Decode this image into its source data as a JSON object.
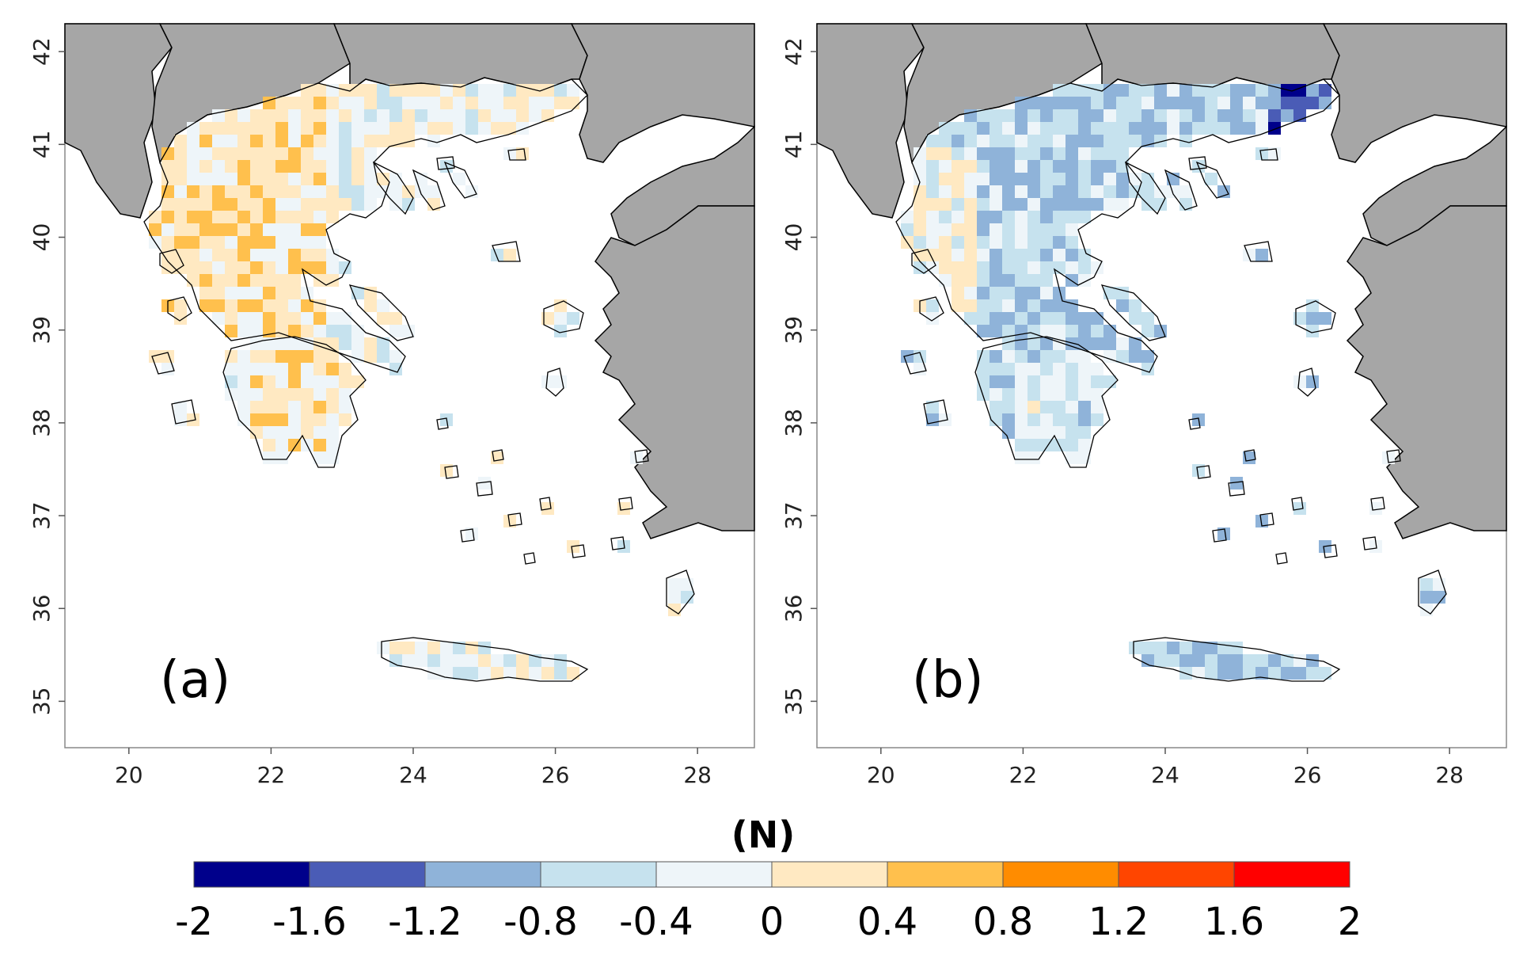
{
  "figure": {
    "panels": [
      {
        "id": "a",
        "label": "(a)",
        "lon_range": [
          19.1,
          28.8
        ],
        "lat_range": [
          34.5,
          42.3
        ],
        "x_ticks": [
          "20",
          "22",
          "24",
          "26",
          "28"
        ],
        "y_ticks": [
          "35",
          "36",
          "37",
          "38",
          "39",
          "40",
          "41",
          "42"
        ],
        "dominant_anomaly": "mixed, near zero with orange (positive) cells in western mainland and Peloponnese"
      },
      {
        "id": "b",
        "label": "(b)",
        "lon_range": [
          19.1,
          28.8
        ],
        "lat_range": [
          34.5,
          42.3
        ],
        "x_ticks": [
          "20",
          "22",
          "24",
          "26",
          "28"
        ],
        "y_ticks": [
          "35",
          "36",
          "37",
          "38",
          "39",
          "40",
          "41",
          "42"
        ],
        "dominant_anomaly": "mostly negative (blue), strongest in northeast Thrace"
      }
    ],
    "colorbar": {
      "title": "(N)",
      "ticks": [
        "-2",
        "-1.6",
        "-1.2",
        "-0.8",
        "-0.4",
        "0",
        "0.4",
        "0.8",
        "1.2",
        "1.6",
        "2"
      ],
      "bins": [
        {
          "from": -2.0,
          "to": -1.6,
          "color": "#00008b"
        },
        {
          "from": -1.6,
          "to": -1.2,
          "color": "#4a5cb6"
        },
        {
          "from": -1.2,
          "to": -0.8,
          "color": "#8fb3d9"
        },
        {
          "from": -0.8,
          "to": -0.4,
          "color": "#c6e2ee"
        },
        {
          "from": -0.4,
          "to": 0.0,
          "color": "#eef5f9"
        },
        {
          "from": 0.0,
          "to": 0.4,
          "color": "#ffe9c2"
        },
        {
          "from": 0.4,
          "to": 0.8,
          "color": "#ffc04d"
        },
        {
          "from": 0.8,
          "to": 1.2,
          "color": "#ff8c00"
        },
        {
          "from": 1.2,
          "to": 1.6,
          "color": "#ff4500"
        },
        {
          "from": 1.6,
          "to": 2.0,
          "color": "#ff0000"
        }
      ]
    },
    "colors": {
      "land_neighbors": "#a6a6a6",
      "sea": "#ffffff",
      "border": "#000000",
      "frame": "#888888"
    }
  }
}
